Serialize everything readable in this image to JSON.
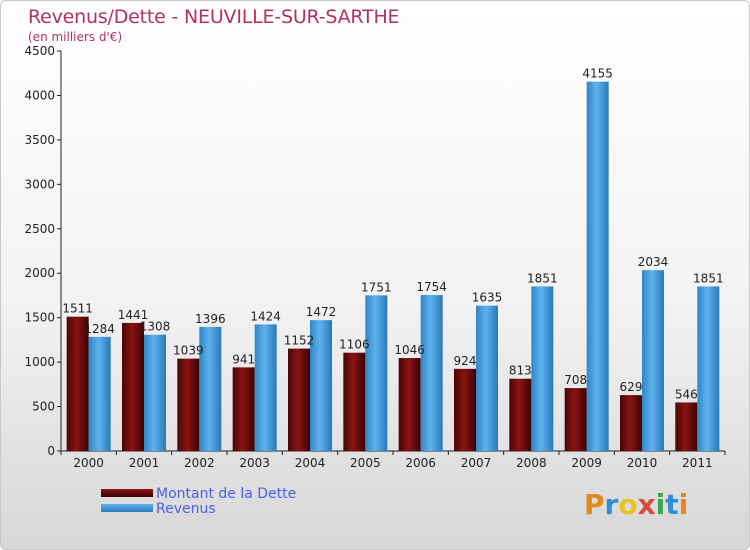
{
  "title": "Revenus/Dette - NEUVILLE-SUR-SARTHE",
  "subtitle": "(en milliers d'€)",
  "colors": {
    "dette": "#6b0a0a",
    "revenus": "#4aa3e6",
    "title": "#b2315f",
    "legend_text": "#4a5ee8"
  },
  "legend": {
    "dette_label": "Montant de la Dette",
    "revenus_label": "Revenus"
  },
  "logo": {
    "letters": [
      "P",
      "r",
      "o",
      "x",
      "i",
      "t",
      "i"
    ],
    "colors": [
      "#e08a1e",
      "#2e8ed8",
      "#e8c21e",
      "#d94a3c",
      "#3aa84a",
      "#2e8ed8",
      "#e08a1e"
    ]
  },
  "chart_data": {
    "type": "bar",
    "categories": [
      "2000",
      "2001",
      "2002",
      "2003",
      "2004",
      "2005",
      "2006",
      "2007",
      "2008",
      "2009",
      "2010",
      "2011"
    ],
    "series": [
      {
        "name": "Montant de la Dette",
        "values": [
          1511,
          1441,
          1039,
          941,
          1152,
          1106,
          1046,
          924,
          813,
          708,
          629,
          546
        ]
      },
      {
        "name": "Revenus",
        "values": [
          1284,
          1308,
          1396,
          1424,
          1472,
          1751,
          1754,
          1635,
          1851,
          4155,
          2034,
          1851
        ]
      }
    ],
    "ylim": [
      0,
      4500
    ],
    "yticks": [
      0,
      500,
      1000,
      1500,
      2000,
      2500,
      3000,
      3500,
      4000,
      4500
    ],
    "grid": false,
    "legend_position": "bottom-left"
  }
}
